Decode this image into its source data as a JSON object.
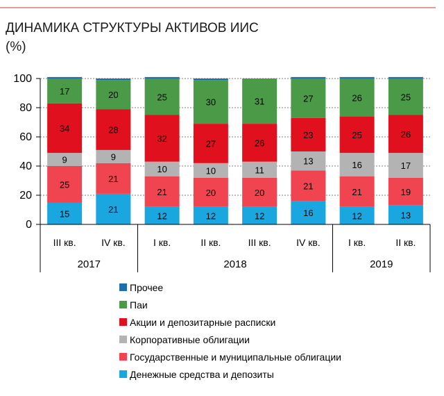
{
  "chart_data": {
    "type": "bar",
    "stacked": true,
    "title": "ДИНАМИКА СТРУКТУРЫ АКТИВОВ ИИС",
    "subtitle": "(%)",
    "ylim": [
      0,
      100
    ],
    "yticks": [
      0,
      20,
      40,
      60,
      80,
      100
    ],
    "grid": true,
    "legend_position": "bottom",
    "categories": [
      "III кв.",
      "IV кв.",
      "I кв.",
      "II кв.",
      "III кв.",
      "IV кв.",
      "I кв.",
      "II кв."
    ],
    "years": [
      {
        "label": "2017",
        "first": 0,
        "last": 1
      },
      {
        "label": "2018",
        "first": 2,
        "last": 5
      },
      {
        "label": "2019",
        "first": 6,
        "last": 7
      }
    ],
    "series": [
      {
        "name": "Денежные средства и депозиты",
        "color": "#1aa7e0",
        "values": [
          15,
          21,
          12,
          12,
          12,
          16,
          12,
          13
        ]
      },
      {
        "name": "Государственные и муниципальные облигации",
        "color": "#f04550",
        "values": [
          25,
          21,
          21,
          20,
          20,
          21,
          21,
          19
        ]
      },
      {
        "name": "Корпоративные облигации",
        "color": "#b3b3b3",
        "values": [
          9,
          9,
          10,
          10,
          11,
          13,
          16,
          17
        ]
      },
      {
        "name": "Акции и депозитарные расписки",
        "color": "#e0101e",
        "values": [
          34,
          28,
          32,
          27,
          26,
          23,
          25,
          26
        ]
      },
      {
        "name": "Паи",
        "color": "#4b9a48",
        "values": [
          17,
          20,
          25,
          30,
          31,
          27,
          26,
          25
        ]
      },
      {
        "name": "Прочее",
        "color": "#1f6fa8",
        "values": [
          1,
          1,
          1,
          1,
          0,
          1,
          1,
          1
        ]
      }
    ],
    "legend_order": [
      "Прочее",
      "Паи",
      "Акции и депозитарные расписки",
      "Корпоративные облигации",
      "Государственные и муниципальные облигации",
      "Денежные средства и депозиты"
    ]
  }
}
